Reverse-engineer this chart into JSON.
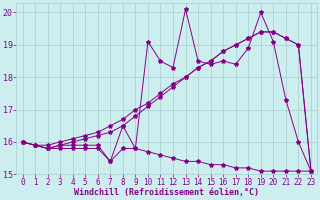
{
  "title": "",
  "xlabel": "Windchill (Refroidissement éolien,°C)",
  "ylabel": "",
  "background_color": "#cceeee",
  "grid_color": "#aacccc",
  "line_color": "#880088",
  "x_values": [
    0,
    1,
    2,
    3,
    4,
    5,
    6,
    7,
    8,
    9,
    10,
    11,
    12,
    13,
    14,
    15,
    16,
    17,
    18,
    19,
    20,
    21,
    22,
    23
  ],
  "series1": [
    16.0,
    15.9,
    15.8,
    15.8,
    15.8,
    15.8,
    15.8,
    15.4,
    15.8,
    15.8,
    15.7,
    15.6,
    15.5,
    15.4,
    15.4,
    15.3,
    15.3,
    15.2,
    15.2,
    15.1,
    15.1,
    15.1,
    15.1,
    15.1
  ],
  "series2": [
    16.0,
    15.9,
    15.8,
    15.9,
    15.9,
    15.9,
    15.9,
    15.4,
    16.5,
    15.8,
    19.1,
    18.5,
    18.3,
    20.1,
    18.5,
    18.4,
    18.5,
    18.4,
    18.9,
    20.0,
    19.1,
    17.3,
    16.0,
    15.1
  ],
  "series3": [
    16.0,
    15.9,
    15.8,
    15.9,
    16.0,
    16.1,
    16.2,
    16.3,
    16.5,
    16.8,
    17.1,
    17.4,
    17.7,
    18.0,
    18.3,
    18.5,
    18.8,
    19.0,
    19.2,
    19.4,
    19.4,
    19.2,
    19.0,
    15.1
  ],
  "series4": [
    16.0,
    15.9,
    15.9,
    16.0,
    16.1,
    16.2,
    16.3,
    16.5,
    16.7,
    17.0,
    17.2,
    17.5,
    17.8,
    18.0,
    18.3,
    18.5,
    18.8,
    19.0,
    19.2,
    19.4,
    19.4,
    19.2,
    19.0,
    15.1
  ],
  "ylim": [
    15.0,
    20.3
  ],
  "xlim": [
    -0.5,
    23.5
  ],
  "yticks": [
    15,
    16,
    17,
    18,
    19,
    20
  ],
  "xticks": [
    0,
    1,
    2,
    3,
    4,
    5,
    6,
    7,
    8,
    9,
    10,
    11,
    12,
    13,
    14,
    15,
    16,
    17,
    18,
    19,
    20,
    21,
    22,
    23
  ],
  "marker": "*",
  "markersize": 3,
  "linewidth": 0.7,
  "tick_fontsize": 5.5,
  "xlabel_fontsize": 6.0
}
